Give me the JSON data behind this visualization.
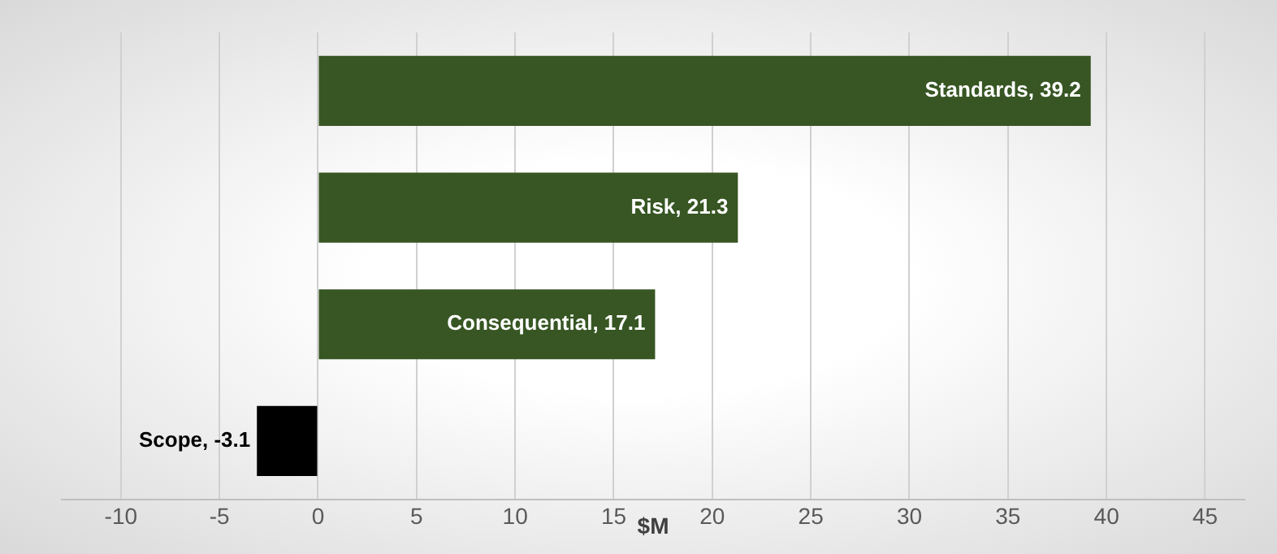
{
  "chart_data": {
    "type": "bar",
    "orientation": "horizontal",
    "xlabel": "$M",
    "categories": [
      null,
      null,
      null,
      null
    ],
    "values": [
      39.2,
      21.3,
      17.1,
      -3.1
    ],
    "colors": [
      "#375623",
      "#375623",
      "#375623",
      "#000000"
    ],
    "value_labels": [
      "Standards, 39.2",
      "Risk, 21.3",
      "Consequential, 17.1",
      "Scope, -3.1"
    ],
    "xlim": [
      -13,
      47
    ],
    "xticks": [
      -10,
      -5,
      0,
      5,
      10,
      15,
      20,
      25,
      30,
      35,
      40,
      45
    ],
    "grid": "x",
    "tick_labels": "x",
    "legend": false
  }
}
